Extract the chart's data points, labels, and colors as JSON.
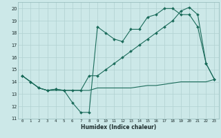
{
  "title": "",
  "xlabel": "Humidex (Indice chaleur)",
  "ylabel": "",
  "bg_color": "#cce8e8",
  "grid_color": "#b0d0d0",
  "line_color": "#1a6b5a",
  "xlim": [
    -0.5,
    23.5
  ],
  "ylim": [
    11,
    20.5
  ],
  "xticks": [
    0,
    1,
    2,
    3,
    4,
    5,
    6,
    7,
    8,
    9,
    10,
    11,
    12,
    13,
    14,
    15,
    16,
    17,
    18,
    19,
    20,
    21,
    22,
    23
  ],
  "yticks": [
    11,
    12,
    13,
    14,
    15,
    16,
    17,
    18,
    19,
    20
  ],
  "series1_x": [
    0,
    1,
    2,
    3,
    4,
    5,
    6,
    7,
    8,
    9,
    10,
    11,
    12,
    13,
    14,
    15,
    16,
    17,
    18,
    19,
    20,
    21,
    22,
    23
  ],
  "series1_y": [
    14.5,
    14.0,
    13.5,
    13.3,
    13.4,
    13.3,
    12.3,
    11.5,
    11.5,
    18.5,
    18.0,
    17.5,
    17.3,
    18.3,
    18.3,
    19.3,
    19.5,
    20.0,
    20.0,
    19.5,
    19.5,
    18.5,
    15.5,
    14.2
  ],
  "series2_x": [
    0,
    1,
    2,
    3,
    4,
    5,
    6,
    7,
    8,
    9,
    10,
    11,
    12,
    13,
    14,
    15,
    16,
    17,
    18,
    19,
    20,
    21,
    22,
    23
  ],
  "series2_y": [
    14.5,
    14.0,
    13.5,
    13.3,
    13.4,
    13.3,
    13.3,
    13.3,
    14.5,
    14.5,
    15.0,
    15.5,
    16.0,
    16.5,
    17.0,
    17.5,
    18.0,
    18.5,
    19.0,
    19.8,
    20.1,
    19.5,
    15.5,
    14.2
  ],
  "series3_x": [
    0,
    1,
    2,
    3,
    4,
    5,
    6,
    7,
    8,
    9,
    10,
    11,
    12,
    13,
    14,
    15,
    16,
    17,
    18,
    19,
    20,
    21,
    22,
    23
  ],
  "series3_y": [
    14.5,
    14.0,
    13.5,
    13.3,
    13.3,
    13.3,
    13.3,
    13.3,
    13.3,
    13.5,
    13.5,
    13.5,
    13.5,
    13.5,
    13.6,
    13.7,
    13.7,
    13.8,
    13.9,
    14.0,
    14.0,
    14.0,
    14.0,
    14.2
  ]
}
